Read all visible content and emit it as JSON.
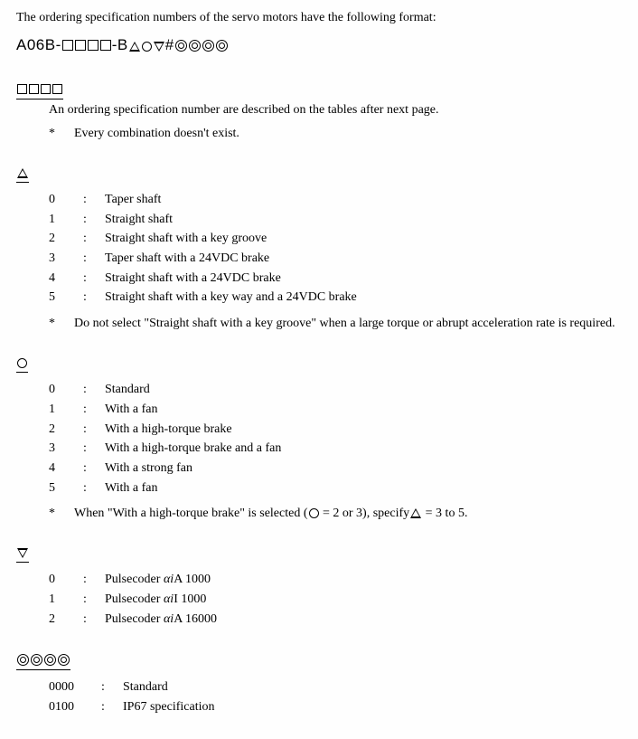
{
  "intro": "The ordering specification numbers of the servo motors have the following format:",
  "format": {
    "prefix": "A06B-",
    "mid": "-B",
    "hash": "#"
  },
  "squares": {
    "desc": "An ordering specification number are described on the tables after next page.",
    "note": "Every combination doesn't exist."
  },
  "triangle": {
    "rows": [
      {
        "k": "0",
        "v": "Taper shaft"
      },
      {
        "k": "1",
        "v": "Straight shaft"
      },
      {
        "k": "2",
        "v": "Straight shaft with a key groove"
      },
      {
        "k": "3",
        "v": "Taper shaft with a 24VDC brake"
      },
      {
        "k": "4",
        "v": "Straight shaft with a 24VDC brake"
      },
      {
        "k": "5",
        "v": "Straight shaft with a key way and a 24VDC brake"
      }
    ],
    "note": "Do not select \"Straight shaft with a key groove\" when a large torque or abrupt acceleration rate is required."
  },
  "circle": {
    "rows": [
      {
        "k": "0",
        "v": "Standard"
      },
      {
        "k": "1",
        "v": "With a fan"
      },
      {
        "k": "2",
        "v": "With a high-torque brake"
      },
      {
        "k": "3",
        "v": "With a high-torque brake and a fan"
      },
      {
        "k": "4",
        "v": "With a strong fan"
      },
      {
        "k": "5",
        "v": "With a fan"
      }
    ],
    "note_a": "When \"With a high-torque brake\" is selected (",
    "note_b": " = 2 or 3), specify",
    "note_c": " = 3 to 5."
  },
  "invtri": {
    "rows": [
      {
        "k": "0",
        "p": "Pulsecoder ",
        "s": "α",
        "m": "i",
        "t": "A 1000"
      },
      {
        "k": "1",
        "p": "Pulsecoder ",
        "s": "α",
        "m": "i",
        "t": "I 1000"
      },
      {
        "k": "2",
        "p": "Pulsecoder ",
        "s": "α",
        "m": "i",
        "t": "A 16000"
      }
    ]
  },
  "dblcircle": {
    "rows": [
      {
        "k": "0000",
        "v": "Standard"
      },
      {
        "k": "0100",
        "v": "IP67 specification"
      }
    ]
  },
  "colon": ":",
  "ast": "*"
}
